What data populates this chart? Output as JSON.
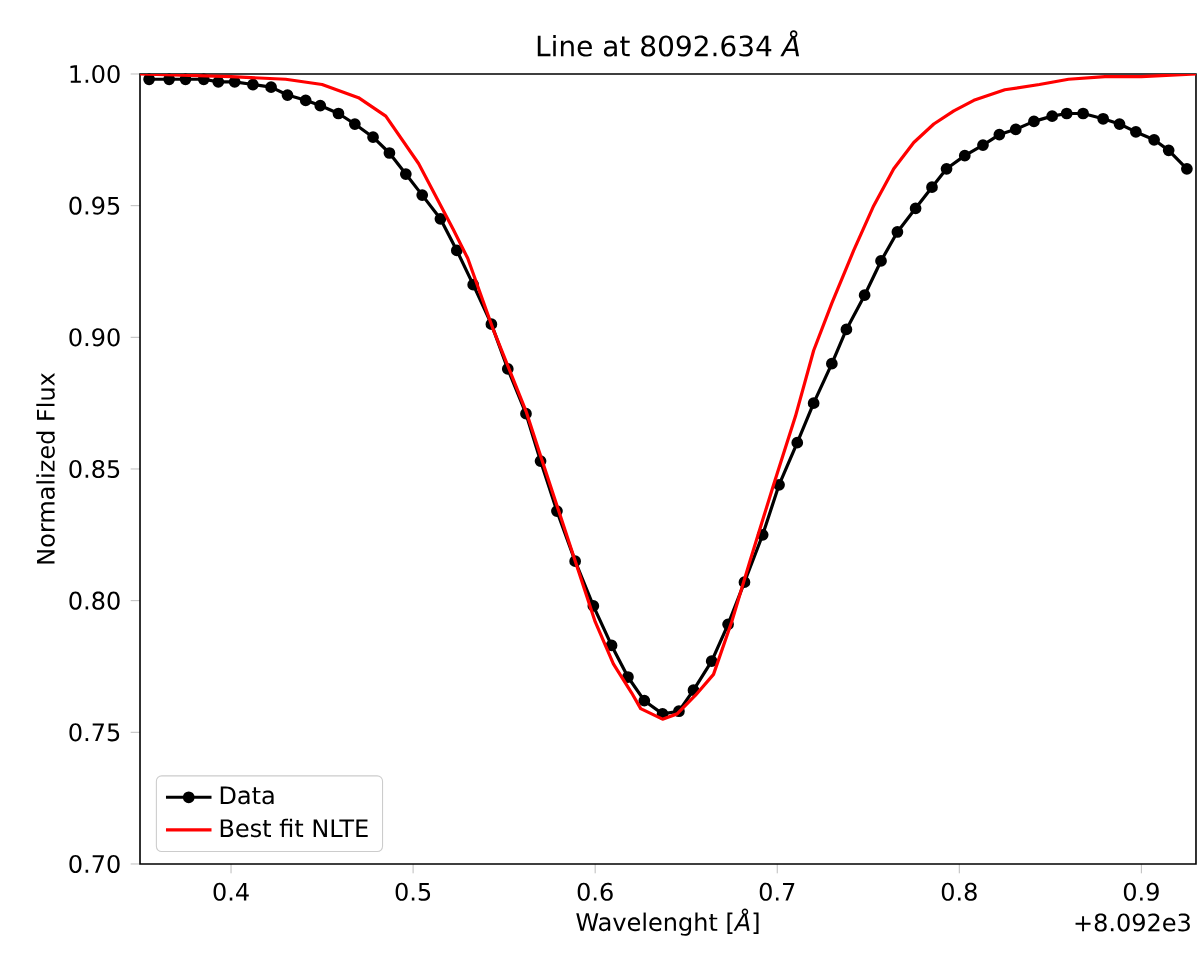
{
  "chart_data": {
    "type": "line",
    "title": "Line at 8092.634 *Å*",
    "xlabel": "Wavelenght [*Å*]",
    "ylabel": "Normalized Flux",
    "annotations": [
      "+8.092e3"
    ],
    "xlim": [
      0.35,
      0.93
    ],
    "ylim": [
      0.7,
      1.0
    ],
    "xticks": [
      0.4,
      0.5,
      0.6,
      0.7,
      0.8,
      0.9
    ],
    "yticks": [
      {
        "value": 0.7,
        "label": "0.70"
      },
      {
        "value": 0.75,
        "label": "0.75"
      },
      {
        "value": 0.8,
        "label": "0.80"
      },
      {
        "value": 0.85,
        "label": "0.85"
      },
      {
        "value": 0.9,
        "label": "0.90"
      },
      {
        "value": 0.95,
        "label": "0.95"
      },
      {
        "value": 1.0,
        "label": "1.00"
      }
    ],
    "grid": false,
    "legend": "bottom left",
    "series": [
      {
        "name": "Data",
        "color": "#000000",
        "marker": "circle",
        "x": [
          0.355,
          0.366,
          0.375,
          0.385,
          0.393,
          0.402,
          0.412,
          0.422,
          0.431,
          0.441,
          0.449,
          0.459,
          0.468,
          0.478,
          0.487,
          0.496,
          0.505,
          0.515,
          0.524,
          0.533,
          0.543,
          0.552,
          0.562,
          0.57,
          0.579,
          0.589,
          0.599,
          0.609,
          0.618,
          0.627,
          0.637,
          0.646,
          0.654,
          0.664,
          0.673,
          0.682,
          0.692,
          0.701,
          0.711,
          0.72,
          0.73,
          0.738,
          0.748,
          0.757,
          0.766,
          0.776,
          0.785,
          0.793,
          0.803,
          0.813,
          0.822,
          0.831,
          0.841,
          0.851,
          0.859,
          0.868,
          0.879,
          0.888,
          0.897,
          0.907,
          0.915,
          0.925
        ],
        "values": [
          0.998,
          0.998,
          0.998,
          0.998,
          0.997,
          0.997,
          0.996,
          0.995,
          0.992,
          0.99,
          0.988,
          0.985,
          0.981,
          0.976,
          0.97,
          0.962,
          0.954,
          0.945,
          0.933,
          0.92,
          0.905,
          0.888,
          0.871,
          0.853,
          0.834,
          0.815,
          0.798,
          0.783,
          0.771,
          0.762,
          0.757,
          0.758,
          0.766,
          0.777,
          0.791,
          0.807,
          0.825,
          0.844,
          0.86,
          0.875,
          0.89,
          0.903,
          0.916,
          0.929,
          0.94,
          0.949,
          0.957,
          0.964,
          0.969,
          0.973,
          0.977,
          0.979,
          0.982,
          0.984,
          0.985,
          0.985,
          0.983,
          0.981,
          0.978,
          0.975,
          0.971,
          0.964
        ]
      },
      {
        "name": "Best fit NLTE",
        "color": "#ff0000",
        "marker": "none",
        "x": [
          0.35,
          0.4,
          0.43,
          0.45,
          0.47,
          0.485,
          0.503,
          0.522,
          0.53,
          0.544,
          0.562,
          0.57,
          0.58,
          0.59,
          0.6,
          0.61,
          0.62,
          0.625,
          0.637,
          0.645,
          0.655,
          0.665,
          0.675,
          0.685,
          0.698,
          0.71,
          0.72,
          0.73,
          0.742,
          0.753,
          0.764,
          0.775,
          0.786,
          0.797,
          0.808,
          0.825,
          0.844,
          0.86,
          0.88,
          0.9,
          0.93
        ],
        "values": [
          1.0,
          0.999,
          0.998,
          0.996,
          0.991,
          0.984,
          0.966,
          0.941,
          0.93,
          0.903,
          0.872,
          0.855,
          0.834,
          0.813,
          0.792,
          0.776,
          0.765,
          0.759,
          0.755,
          0.757,
          0.764,
          0.772,
          0.792,
          0.815,
          0.844,
          0.87,
          0.895,
          0.913,
          0.933,
          0.95,
          0.964,
          0.974,
          0.981,
          0.986,
          0.99,
          0.994,
          0.996,
          0.998,
          0.999,
          0.999,
          1.0
        ]
      }
    ]
  }
}
